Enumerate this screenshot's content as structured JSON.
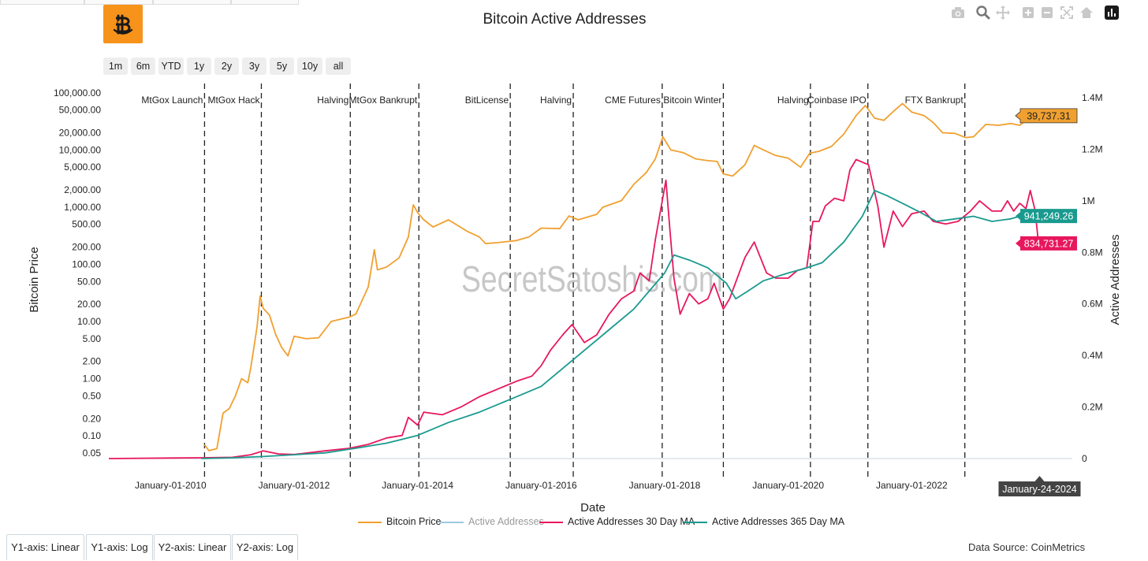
{
  "chart_data": {
    "type": "line",
    "title": "Bitcoin Active Addresses",
    "xlabel": "Date",
    "ylabel": "Bitcoin Price",
    "y2label": "Active Addresses",
    "yscale": "log",
    "ylim": [
      0.04,
      150000
    ],
    "y2lim": [
      0,
      1400000
    ],
    "x_ticks": [
      "January-01-2010",
      "January-01-2012",
      "January-01-2014",
      "January-01-2016",
      "January-01-2018",
      "January-01-2020",
      "January-01-2022"
    ],
    "y_ticks": [
      {
        "value": 100000,
        "label": "100,000.00"
      },
      {
        "value": 50000,
        "label": "50,000.00"
      },
      {
        "value": 20000,
        "label": "20,000.00"
      },
      {
        "value": 10000,
        "label": "10,000.00"
      },
      {
        "value": 5000,
        "label": "5,000.00"
      },
      {
        "value": 2000,
        "label": "2,000.00"
      },
      {
        "value": 1000,
        "label": "1,000.00"
      },
      {
        "value": 500,
        "label": "500.00"
      },
      {
        "value": 200,
        "label": "200.00"
      },
      {
        "value": 100,
        "label": "100.00"
      },
      {
        "value": 50,
        "label": "50.00"
      },
      {
        "value": 20,
        "label": "20.00"
      },
      {
        "value": 10,
        "label": "10.00"
      },
      {
        "value": 5,
        "label": "5.00"
      },
      {
        "value": 2,
        "label": "2.00"
      },
      {
        "value": 1,
        "label": "1.00"
      },
      {
        "value": 0.5,
        "label": "0.50"
      },
      {
        "value": 0.2,
        "label": "0.20"
      },
      {
        "value": 0.1,
        "label": "0.10"
      },
      {
        "value": 0.05,
        "label": "0.05"
      }
    ],
    "y2_ticks": [
      {
        "value": 0,
        "label": "0"
      },
      {
        "value": 200000,
        "label": "0.2M"
      },
      {
        "value": 400000,
        "label": "0.4M"
      },
      {
        "value": 600000,
        "label": "0.6M"
      },
      {
        "value": 800000,
        "label": "0.8M"
      },
      {
        "value": 1000000,
        "label": "1M"
      },
      {
        "value": 1200000,
        "label": "1.2M"
      },
      {
        "value": 1400000,
        "label": "1.4M"
      }
    ],
    "events": [
      {
        "label": "MtGox Launch",
        "date": 2010.55
      },
      {
        "label": "MtGox Hack",
        "date": 2011.47
      },
      {
        "label": "Halving",
        "date": 2012.91
      },
      {
        "label": "MtGox Bankrupt",
        "date": 2014.02
      },
      {
        "label": "BitLicense",
        "date": 2015.5
      },
      {
        "label": "Halving",
        "date": 2016.52
      },
      {
        "label": "CME Futures",
        "date": 2017.96
      },
      {
        "label": "Bitcoin Winter",
        "date": 2018.95
      },
      {
        "label": "Halving",
        "date": 2020.36
      },
      {
        "label": "Coinbase IPO",
        "date": 2021.29
      },
      {
        "label": "FTX Bankrupt",
        "date": 2022.86
      }
    ],
    "series": [
      {
        "name": "Bitcoin Price",
        "axis": "y",
        "color": "#f0a030",
        "points": [
          [
            2010.55,
            0.07
          ],
          [
            2010.62,
            0.055
          ],
          [
            2010.75,
            0.06
          ],
          [
            2010.85,
            0.25
          ],
          [
            2010.95,
            0.3
          ],
          [
            2011.05,
            0.5
          ],
          [
            2011.15,
            1.0
          ],
          [
            2011.25,
            0.85
          ],
          [
            2011.3,
            1.6
          ],
          [
            2011.4,
            8
          ],
          [
            2011.45,
            28
          ],
          [
            2011.5,
            17
          ],
          [
            2011.6,
            13
          ],
          [
            2011.7,
            6
          ],
          [
            2011.8,
            3.5
          ],
          [
            2011.9,
            2.5
          ],
          [
            2012.0,
            5.5
          ],
          [
            2012.2,
            5.0
          ],
          [
            2012.4,
            5.2
          ],
          [
            2012.6,
            10
          ],
          [
            2012.9,
            12
          ],
          [
            2013.0,
            13.5
          ],
          [
            2013.2,
            40
          ],
          [
            2013.3,
            180
          ],
          [
            2013.35,
            80
          ],
          [
            2013.5,
            90
          ],
          [
            2013.7,
            130
          ],
          [
            2013.85,
            300
          ],
          [
            2013.93,
            1100
          ],
          [
            2014.0,
            800
          ],
          [
            2014.1,
            600
          ],
          [
            2014.25,
            450
          ],
          [
            2014.5,
            600
          ],
          [
            2014.8,
            380
          ],
          [
            2015.0,
            300
          ],
          [
            2015.1,
            230
          ],
          [
            2015.3,
            240
          ],
          [
            2015.6,
            260
          ],
          [
            2015.8,
            300
          ],
          [
            2016.0,
            430
          ],
          [
            2016.3,
            420
          ],
          [
            2016.45,
            700
          ],
          [
            2016.6,
            600
          ],
          [
            2016.9,
            750
          ],
          [
            2017.0,
            1000
          ],
          [
            2017.3,
            1300
          ],
          [
            2017.5,
            2500
          ],
          [
            2017.7,
            4000
          ],
          [
            2017.85,
            7000
          ],
          [
            2017.97,
            17000
          ],
          [
            2018.1,
            10000
          ],
          [
            2018.3,
            9000
          ],
          [
            2018.5,
            7000
          ],
          [
            2018.7,
            6500
          ],
          [
            2018.85,
            6300
          ],
          [
            2018.95,
            3800
          ],
          [
            2019.1,
            3500
          ],
          [
            2019.3,
            5500
          ],
          [
            2019.45,
            12000
          ],
          [
            2019.6,
            10000
          ],
          [
            2019.8,
            8000
          ],
          [
            2020.0,
            7200
          ],
          [
            2020.2,
            5000
          ],
          [
            2020.35,
            8800
          ],
          [
            2020.5,
            9500
          ],
          [
            2020.7,
            11500
          ],
          [
            2020.9,
            19000
          ],
          [
            2021.1,
            40000
          ],
          [
            2021.25,
            60000
          ],
          [
            2021.4,
            36000
          ],
          [
            2021.55,
            33000
          ],
          [
            2021.7,
            47000
          ],
          [
            2021.85,
            65000
          ],
          [
            2022.0,
            46000
          ],
          [
            2022.2,
            40000
          ],
          [
            2022.35,
            30000
          ],
          [
            2022.5,
            20000
          ],
          [
            2022.7,
            19500
          ],
          [
            2022.87,
            16500
          ],
          [
            2023.0,
            17000
          ],
          [
            2023.2,
            28000
          ],
          [
            2023.4,
            27000
          ],
          [
            2023.6,
            29000
          ],
          [
            2023.75,
            27000
          ],
          [
            2023.9,
            37000
          ],
          [
            2024.0,
            43000
          ],
          [
            2024.07,
            39737.31
          ]
        ]
      },
      {
        "name": "Active Addresses",
        "axis": "y2",
        "color": "#9ecae1",
        "points": []
      },
      {
        "name": "Active Addresses 30 Day MA",
        "axis": "y2",
        "color": "#e8175d",
        "points": [
          [
            2009.0,
            0
          ],
          [
            2010.0,
            2000
          ],
          [
            2010.5,
            3000
          ],
          [
            2011.0,
            5000
          ],
          [
            2011.3,
            15000
          ],
          [
            2011.5,
            30000
          ],
          [
            2011.75,
            18000
          ],
          [
            2012.0,
            16000
          ],
          [
            2012.5,
            30000
          ],
          [
            2012.9,
            40000
          ],
          [
            2013.2,
            55000
          ],
          [
            2013.5,
            80000
          ],
          [
            2013.75,
            90000
          ],
          [
            2013.85,
            160000
          ],
          [
            2014.0,
            130000
          ],
          [
            2014.1,
            180000
          ],
          [
            2014.4,
            170000
          ],
          [
            2014.7,
            200000
          ],
          [
            2015.0,
            240000
          ],
          [
            2015.3,
            270000
          ],
          [
            2015.6,
            300000
          ],
          [
            2015.85,
            320000
          ],
          [
            2016.0,
            360000
          ],
          [
            2016.15,
            420000
          ],
          [
            2016.35,
            480000
          ],
          [
            2016.5,
            520000
          ],
          [
            2016.7,
            450000
          ],
          [
            2016.9,
            480000
          ],
          [
            2017.1,
            560000
          ],
          [
            2017.3,
            620000
          ],
          [
            2017.5,
            650000
          ],
          [
            2017.6,
            720000
          ],
          [
            2017.75,
            690000
          ],
          [
            2017.85,
            850000
          ],
          [
            2018.02,
            1080000
          ],
          [
            2018.08,
            900000
          ],
          [
            2018.15,
            700000
          ],
          [
            2018.25,
            560000
          ],
          [
            2018.4,
            640000
          ],
          [
            2018.55,
            600000
          ],
          [
            2018.7,
            620000
          ],
          [
            2018.8,
            680000
          ],
          [
            2018.95,
            580000
          ],
          [
            2019.05,
            620000
          ],
          [
            2019.3,
            780000
          ],
          [
            2019.45,
            840000
          ],
          [
            2019.55,
            780000
          ],
          [
            2019.65,
            720000
          ],
          [
            2019.8,
            700000
          ],
          [
            2020.0,
            700000
          ],
          [
            2020.15,
            730000
          ],
          [
            2020.3,
            740000
          ],
          [
            2020.4,
            920000
          ],
          [
            2020.5,
            920000
          ],
          [
            2020.6,
            980000
          ],
          [
            2020.75,
            1010000
          ],
          [
            2020.9,
            1000000
          ],
          [
            2021.0,
            1120000
          ],
          [
            2021.1,
            1160000
          ],
          [
            2021.3,
            1140000
          ],
          [
            2021.45,
            980000
          ],
          [
            2021.55,
            820000
          ],
          [
            2021.7,
            960000
          ],
          [
            2021.85,
            900000
          ],
          [
            2022.0,
            950000
          ],
          [
            2022.2,
            960000
          ],
          [
            2022.35,
            920000
          ],
          [
            2022.55,
            910000
          ],
          [
            2022.75,
            920000
          ],
          [
            2022.95,
            960000
          ],
          [
            2023.1,
            1000000
          ],
          [
            2023.3,
            960000
          ],
          [
            2023.45,
            960000
          ],
          [
            2023.55,
            1000000
          ],
          [
            2023.65,
            960000
          ],
          [
            2023.75,
            990000
          ],
          [
            2023.85,
            970000
          ],
          [
            2023.92,
            1040000
          ],
          [
            2024.0,
            960000
          ],
          [
            2024.05,
            840000
          ],
          [
            2024.07,
            834731.27
          ]
        ]
      },
      {
        "name": "Active Addresses 365 Day MA",
        "axis": "y2",
        "color": "#1a9a8f",
        "points": [
          [
            2010.5,
            0
          ],
          [
            2011.0,
            3000
          ],
          [
            2011.5,
            8000
          ],
          [
            2012.0,
            15000
          ],
          [
            2012.5,
            22000
          ],
          [
            2013.0,
            40000
          ],
          [
            2013.5,
            60000
          ],
          [
            2014.0,
            90000
          ],
          [
            2014.5,
            140000
          ],
          [
            2015.0,
            180000
          ],
          [
            2015.5,
            230000
          ],
          [
            2016.0,
            280000
          ],
          [
            2016.5,
            380000
          ],
          [
            2017.0,
            480000
          ],
          [
            2017.5,
            580000
          ],
          [
            2018.0,
            720000
          ],
          [
            2018.15,
            790000
          ],
          [
            2018.4,
            770000
          ],
          [
            2018.7,
            740000
          ],
          [
            2019.0,
            680000
          ],
          [
            2019.15,
            620000
          ],
          [
            2019.35,
            650000
          ],
          [
            2019.6,
            690000
          ],
          [
            2020.0,
            720000
          ],
          [
            2020.3,
            740000
          ],
          [
            2020.55,
            760000
          ],
          [
            2020.9,
            840000
          ],
          [
            2021.2,
            940000
          ],
          [
            2021.4,
            1040000
          ],
          [
            2021.6,
            1020000
          ],
          [
            2021.85,
            990000
          ],
          [
            2022.1,
            960000
          ],
          [
            2022.4,
            920000
          ],
          [
            2022.7,
            930000
          ],
          [
            2023.0,
            940000
          ],
          [
            2023.3,
            920000
          ],
          [
            2023.6,
            930000
          ],
          [
            2023.9,
            950000
          ],
          [
            2024.07,
            941249.26
          ]
        ]
      }
    ],
    "end_labels": [
      {
        "series": "Bitcoin Price",
        "value": 39737.31,
        "label": "39,737.31"
      },
      {
        "series": "Active Addresses 365 Day MA",
        "value": 941249.26,
        "label": "941,249.26"
      },
      {
        "series": "Active Addresses 30 Day MA",
        "value": 834731.27,
        "label": "834,731.27"
      }
    ],
    "hover_date": {
      "date": 2024.07,
      "label": "January-24-2024"
    },
    "watermark": "SecretSatoshis.com"
  },
  "range_buttons": [
    "1m",
    "6m",
    "YTD",
    "1y",
    "2y",
    "3y",
    "5y",
    "10y",
    "all"
  ],
  "axis_tabs": [
    "Y1-axis: Linear",
    "Y1-axis: Log",
    "Y2-axis: Linear",
    "Y2-axis: Log"
  ],
  "data_source": "Data Source: CoinMetrics",
  "colors": {
    "accent": "#f7931a",
    "price": "#f0a030",
    "ma30": "#e8175d",
    "ma365": "#1a9a8f",
    "aa": "#9ecae1"
  }
}
